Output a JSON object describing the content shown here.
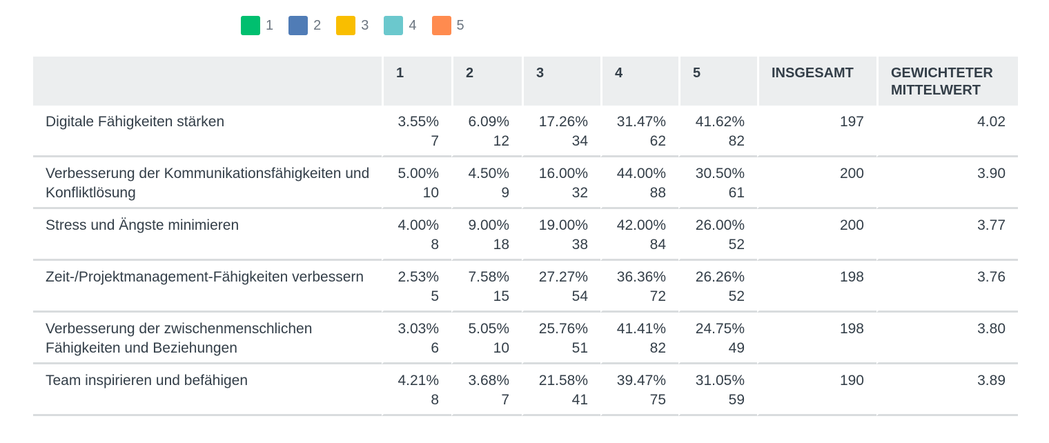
{
  "legend": [
    {
      "label": "1",
      "color": "#00bf6f"
    },
    {
      "label": "2",
      "color": "#507cb6"
    },
    {
      "label": "3",
      "color": "#f9be00"
    },
    {
      "label": "4",
      "color": "#6bc8cd"
    },
    {
      "label": "5",
      "color": "#ff8b4f"
    }
  ],
  "table": {
    "headers": [
      "",
      "1",
      "2",
      "3",
      "4",
      "5",
      "INSGESAMT",
      "GEWICHTETER MITTELWERT"
    ],
    "rows": [
      {
        "label": "Digitale Fähigkeiten stärken",
        "cells": [
          {
            "pct": "3.55%",
            "count": "7"
          },
          {
            "pct": "6.09%",
            "count": "12"
          },
          {
            "pct": "17.26%",
            "count": "34"
          },
          {
            "pct": "31.47%",
            "count": "62"
          },
          {
            "pct": "41.62%",
            "count": "82"
          }
        ],
        "total": "197",
        "weighted_avg": "4.02"
      },
      {
        "label": "Verbesserung der Kommunikationsfähigkeiten und Konfliktlösung",
        "cells": [
          {
            "pct": "5.00%",
            "count": "10"
          },
          {
            "pct": "4.50%",
            "count": "9"
          },
          {
            "pct": "16.00%",
            "count": "32"
          },
          {
            "pct": "44.00%",
            "count": "88"
          },
          {
            "pct": "30.50%",
            "count": "61"
          }
        ],
        "total": "200",
        "weighted_avg": "3.90"
      },
      {
        "label": "Stress und Ängste minimieren",
        "cells": [
          {
            "pct": "4.00%",
            "count": "8"
          },
          {
            "pct": "9.00%",
            "count": "18"
          },
          {
            "pct": "19.00%",
            "count": "38"
          },
          {
            "pct": "42.00%",
            "count": "84"
          },
          {
            "pct": "26.00%",
            "count": "52"
          }
        ],
        "total": "200",
        "weighted_avg": "3.77"
      },
      {
        "label": "Zeit-/Projektmanagement-Fähigkeiten verbessern",
        "cells": [
          {
            "pct": "2.53%",
            "count": "5"
          },
          {
            "pct": "7.58%",
            "count": "15"
          },
          {
            "pct": "27.27%",
            "count": "54"
          },
          {
            "pct": "36.36%",
            "count": "72"
          },
          {
            "pct": "26.26%",
            "count": "52"
          }
        ],
        "total": "198",
        "weighted_avg": "3.76"
      },
      {
        "label": "Verbesserung der zwischenmenschlichen Fähigkeiten und Beziehungen",
        "cells": [
          {
            "pct": "3.03%",
            "count": "6"
          },
          {
            "pct": "5.05%",
            "count": "10"
          },
          {
            "pct": "25.76%",
            "count": "51"
          },
          {
            "pct": "41.41%",
            "count": "82"
          },
          {
            "pct": "24.75%",
            "count": "49"
          }
        ],
        "total": "198",
        "weighted_avg": "3.80"
      },
      {
        "label": "Team inspirieren und befähigen",
        "cells": [
          {
            "pct": "4.21%",
            "count": "8"
          },
          {
            "pct": "3.68%",
            "count": "7"
          },
          {
            "pct": "21.58%",
            "count": "41"
          },
          {
            "pct": "39.47%",
            "count": "75"
          },
          {
            "pct": "31.05%",
            "count": "59"
          }
        ],
        "total": "190",
        "weighted_avg": "3.89"
      }
    ]
  }
}
